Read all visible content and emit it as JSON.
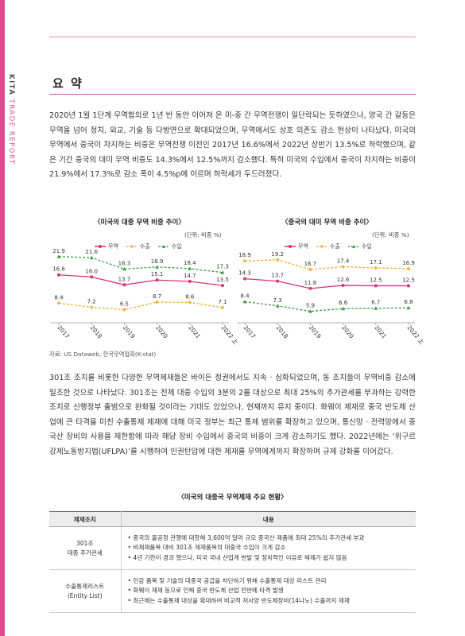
{
  "sidebar": {
    "brand": "KITA",
    "label": "TRADE REPORT"
  },
  "section_title": "요 약",
  "paragraph1": "2020년 1월 1단계 무역합의로 1년 반 동안 이어져 온 미-중 간 무역전쟁이 일단락되는 듯하였으나, 양국 간 갈등은 무역을 넘어 정치, 외교, 기술 등 다방면으로 확대되었으며, 무역에서도 상호 의존도 감소 현상이 나타났다. 미국의 무역에서 중국이 차지하는 비중은 무역전쟁 이전인 2017년 16.6%에서 2022년 상반기 13.5%로 하락했으며, 같은 기간 중국의 대미 무역 비중도 14.3%에서 12.5%까지 감소했다. 특히 미국의 수입에서 중국이 차지하는 비중이 21.9%에서 17.3%로 감소 폭이 4.5%p에 이르며 하락세가 두드러졌다.",
  "chart_data": [
    {
      "type": "line",
      "title": "〈미국의 대중 무역 비중 추이〉",
      "unit": "(단위: 비중 %)",
      "categories": [
        "2017",
        "2018",
        "2019",
        "2020",
        "2021",
        "2022 上"
      ],
      "series": [
        {
          "name": "무역",
          "color": "#d6357a",
          "values": [
            16.6,
            16.0,
            13.7,
            15.1,
            14.7,
            13.5
          ]
        },
        {
          "name": "수출",
          "color": "#f2b02f",
          "values": [
            8.4,
            7.2,
            6.5,
            8.7,
            8.6,
            7.1
          ]
        },
        {
          "name": "수입",
          "color": "#43a047",
          "values": [
            21.9,
            21.6,
            18.3,
            18.9,
            18.4,
            17.3
          ]
        }
      ],
      "ylim": [
        5,
        23
      ]
    },
    {
      "type": "line",
      "title": "〈중국의 대미 무역 비중 추이〉",
      "unit": "(단위: 비중 %)",
      "categories": [
        "2017",
        "2018",
        "2019",
        "2020",
        "2021",
        "2022 上"
      ],
      "series": [
        {
          "name": "무역",
          "color": "#d6357a",
          "values": [
            14.3,
            13.7,
            11.8,
            12.6,
            12.5,
            12.5
          ]
        },
        {
          "name": "수출",
          "color": "#f2b02f",
          "values": [
            18.9,
            19.2,
            16.7,
            17.4,
            17.1,
            16.9
          ]
        },
        {
          "name": "수입",
          "color": "#43a047",
          "values": [
            8.4,
            7.3,
            5.9,
            6.6,
            6.7,
            6.8
          ]
        }
      ],
      "ylim": [
        5,
        21
      ]
    }
  ],
  "source": "자료: US Dataweb, 한국무역협회(K-stat)",
  "paragraph2": "301조 조치를 비롯한 다양한 무역제재들은 바이든 정권에서도 지속 · 심화되었으며, 동 조치들이 무역비중 감소에 일조한 것으로 나타났다. 301조는 전체 대중 수입의 3분의 2를 대상으로 최대 25%의 추가관세를 부과하는 강력한 조치로 신행정부 출범으로 완화될 것이라는 기대도 있었으나, 현재까지 유지 중이다. 화웨이 제재로 중국 반도체 산업에 큰 타격을 미친 수출통제 제재에 대해 미국 정부는 최근 통제 범위를 확장하고 있으며, 통신망 · 전력망에서 중국산 장비의 사용을 제한함에 따라 해당 장비 수입에서 중국의 비중이 크게 감소하기도 했다. 2022년에는 ‘위구르 강제노동방지법(UFLPA)’를 시행하여 인권탄압에 대한 제재를 무역에게까지 확장하며 규제 강화를 이어갔다.",
  "table": {
    "title": "〈미국의 대중국 무역제재 주요 현황〉",
    "headers": [
      "제재조치",
      "내용"
    ],
    "rows": [
      {
        "name_line1": "301조",
        "name_line2": "대중 추가관세",
        "items": [
          "• 중국의 불공정 관행에 대항해 3,600억 달러 규모 중국산 제품에 최대 25%의 추가관세 부과",
          "• 비제재품목 대비 301조 제재품목의 대중국 수입이 크게 감소",
          "• 4년 기한이 경과 했으나, 미국 국내 산업계 반발 및 정치적인 이유로 해제가 쉽지 않음"
        ]
      },
      {
        "name_line1": "수출통제리스트",
        "name_line2": "(Entity List)",
        "items": [
          "• 민감 품목 및 기술의 대중국 공급을 차단하기 위해 수출통제 대상 리스트 관리",
          "• 화웨이 제재 등으로 인해 중국 반도체 산업 전반에 타격 발생",
          "• 최근에는 수출통제 대상을 확대하여 비교적 저사양 반도체장비(14나노) 수출까지 제재"
        ]
      }
    ]
  }
}
